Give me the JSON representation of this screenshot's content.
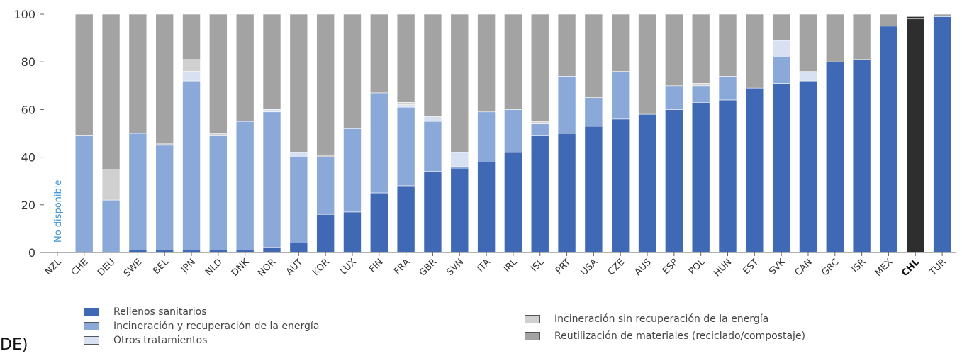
{
  "colors": {
    "rellenos": "#3f68b5",
    "incineracion_rec": "#8aa8d8",
    "otros": "#d7e1f1",
    "incineracion_sin": "#d0d0d0",
    "reutilizacion": "#a3a3a3",
    "highlight": "#2e2e2e"
  },
  "chart_data": {
    "type": "bar",
    "stacked": true,
    "ylim": [
      0,
      100
    ],
    "yticks": [
      "0",
      "20",
      "40",
      "60",
      "80",
      "100"
    ],
    "categories": [
      "NZL",
      "CHE",
      "DEU",
      "SWE",
      "BEL",
      "JPN",
      "NLD",
      "DNK",
      "NOR",
      "AUT",
      "KOR",
      "LUX",
      "FIN",
      "FRA",
      "GBR",
      "SVN",
      "ITA",
      "IRL",
      "ISL",
      "PRT",
      "USA",
      "CZE",
      "AUS",
      "ESP",
      "POL",
      "HUN",
      "EST",
      "SVK",
      "CAN",
      "GRC",
      "ISR",
      "MEX",
      "CHL",
      "TUR"
    ],
    "highlight_category": "CHL",
    "annotation": "No disponible",
    "series": [
      {
        "name": "Rellenos sanitarios",
        "color_key": "rellenos",
        "values": [
          null,
          0,
          0,
          1,
          1,
          1,
          1,
          1,
          2,
          4,
          16,
          17,
          25,
          28,
          34,
          35,
          38,
          42,
          49,
          50,
          53,
          56,
          58,
          60,
          63,
          64,
          69,
          71,
          72,
          80,
          81,
          95,
          98,
          99
        ]
      },
      {
        "name": "Incineración y recuperación de la energía",
        "color_key": "incineracion_rec",
        "values": [
          null,
          49,
          22,
          49,
          44,
          71,
          48,
          54,
          57,
          36,
          24,
          35,
          42,
          33,
          21,
          1,
          21,
          18,
          5,
          24,
          12,
          20,
          0,
          10,
          7,
          10,
          0,
          11,
          0,
          0,
          0,
          0,
          0,
          0
        ]
      },
      {
        "name": "Otros tratamientos",
        "color_key": "otros",
        "values": [
          null,
          0,
          0,
          0,
          0,
          4,
          0,
          0,
          1,
          2,
          0,
          0,
          0,
          1,
          2,
          6,
          0,
          0,
          0,
          0,
          0,
          0,
          0,
          0,
          0,
          0,
          0,
          7,
          4,
          0,
          0,
          0,
          0,
          0
        ]
      },
      {
        "name": "Incineración sin recuperación de la energía",
        "color_key": "incineracion_sin",
        "values": [
          null,
          0,
          13,
          0,
          1,
          5,
          1,
          0,
          0,
          0,
          1,
          0,
          0,
          1,
          0,
          0,
          0,
          0,
          1,
          0,
          0,
          0,
          0,
          0,
          1,
          0,
          0,
          0,
          0,
          0,
          0,
          0,
          0,
          0
        ]
      },
      {
        "name": "Reutilización de materiales (reciclado/compostaje)",
        "color_key": "reutilizacion",
        "values": [
          null,
          51,
          65,
          50,
          54,
          19,
          50,
          45,
          40,
          58,
          59,
          48,
          33,
          37,
          43,
          58,
          41,
          40,
          45,
          26,
          35,
          24,
          42,
          30,
          29,
          26,
          31,
          11,
          24,
          20,
          19,
          5,
          1,
          1
        ]
      }
    ]
  },
  "legend": [
    {
      "label": "Rellenos sanitarios",
      "color_key": "rellenos"
    },
    {
      "label": "Incineración y recuperación de la energía",
      "color_key": "incineracion_rec"
    },
    {
      "label": "Otros tratamientos",
      "color_key": "otros"
    },
    {
      "label": "Incineración sin recuperación de la energía",
      "color_key": "incineracion_sin"
    },
    {
      "label": "Reutilización de materiales (reciclado/compostaje)",
      "color_key": "reutilizacion"
    }
  ],
  "cut_label": "DE)"
}
